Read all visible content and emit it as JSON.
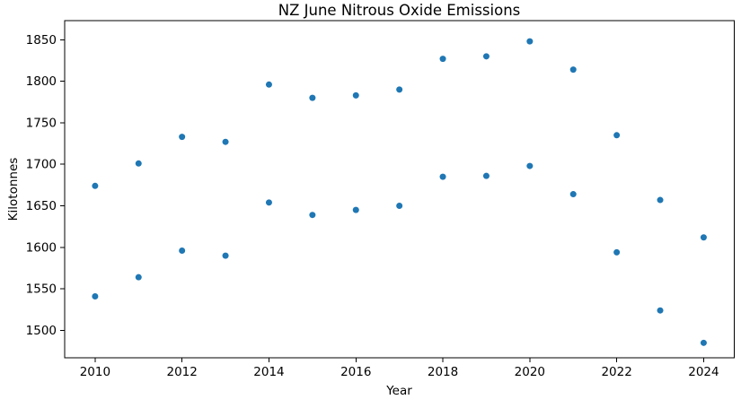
{
  "chart_data": {
    "type": "scatter",
    "title": "NZ June Nitrous Oxide Emissions",
    "xlabel": "Year",
    "ylabel": "Kilotonnes",
    "x_tick_labels": [
      2010,
      2012,
      2014,
      2016,
      2018,
      2020,
      2022,
      2024
    ],
    "y_tick_labels": [
      1500,
      1550,
      1600,
      1650,
      1700,
      1750,
      1800,
      1850
    ],
    "xlim": [
      2009.3,
      2024.7
    ],
    "ylim": [
      1467,
      1873
    ],
    "grid": false,
    "legend": "none",
    "marker": {
      "shape": "circle",
      "color": "#1f77b4",
      "radius_px": 3.5
    },
    "axis_color": "#000000",
    "background_color": "#ffffff",
    "points": [
      [
        2010,
        1674
      ],
      [
        2010,
        1541
      ],
      [
        2011,
        1701
      ],
      [
        2011,
        1564
      ],
      [
        2012,
        1733
      ],
      [
        2012,
        1596
      ],
      [
        2013,
        1727
      ],
      [
        2013,
        1590
      ],
      [
        2014,
        1796
      ],
      [
        2014,
        1654
      ],
      [
        2015,
        1780
      ],
      [
        2015,
        1639
      ],
      [
        2016,
        1783
      ],
      [
        2016,
        1645
      ],
      [
        2017,
        1790
      ],
      [
        2017,
        1650
      ],
      [
        2018,
        1827
      ],
      [
        2018,
        1685
      ],
      [
        2019,
        1830
      ],
      [
        2019,
        1686
      ],
      [
        2020,
        1848
      ],
      [
        2020,
        1698
      ],
      [
        2021,
        1814
      ],
      [
        2021,
        1664
      ],
      [
        2022,
        1735
      ],
      [
        2022,
        1594
      ],
      [
        2023,
        1657
      ],
      [
        2023,
        1524
      ],
      [
        2024,
        1612
      ],
      [
        2024,
        1485
      ]
    ]
  }
}
